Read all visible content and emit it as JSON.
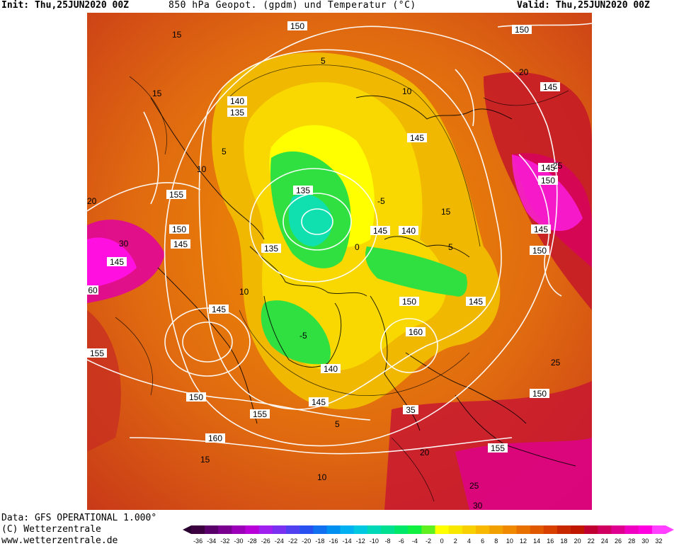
{
  "header": {
    "init": "Init: Thu,25JUN2020 00Z",
    "title": "850 hPa Geopot. (gpdm) und Temperatur (°C)",
    "valid": "Valid: Thu,25JUN2020 00Z"
  },
  "footer": {
    "data_line": "Data: GFS OPERATIONAL 1.000°",
    "copyright": "(C) Wetterzentrale",
    "url": "www.wetterzentrale.de"
  },
  "colorbar": {
    "labels": [
      "-36",
      "-34",
      "-32",
      "-30",
      "-28",
      "-26",
      "-24",
      "-22",
      "-20",
      "-18",
      "-16",
      "-14",
      "-12",
      "-10",
      "-8",
      "-6",
      "-4",
      "-2",
      "0",
      "2",
      "4",
      "6",
      "8",
      "10",
      "12",
      "14",
      "16",
      "18",
      "20",
      "22",
      "24",
      "26",
      "28",
      "30",
      "32"
    ],
    "colors": [
      "#3a0040",
      "#5a006a",
      "#7a0090",
      "#9c00b8",
      "#b800d8",
      "#a020f0",
      "#7a30f0",
      "#5040f0",
      "#2850f0",
      "#1070f0",
      "#0090f0",
      "#00b0f0",
      "#00c8e0",
      "#00d8b8",
      "#00e090",
      "#00e868",
      "#10f040",
      "#60f020",
      "#ffff00",
      "#f8e800",
      "#f8d000",
      "#f8b800",
      "#f0a000",
      "#f08800",
      "#e87000",
      "#e05800",
      "#d84000",
      "#c82800",
      "#c01800",
      "#c00030",
      "#d00060",
      "#e00090",
      "#f000c0",
      "#ff00e0",
      "#ff40ff"
    ]
  },
  "map": {
    "geopotential_labels": [
      "150",
      "150",
      "140",
      "135",
      "145",
      "145",
      "150",
      "145",
      "155",
      "150",
      "145",
      "135",
      "145",
      "140",
      "145",
      "150",
      "145",
      "135",
      "150",
      "160",
      "145",
      "145",
      "140",
      "150",
      "155",
      "145",
      "155",
      "160",
      "155",
      "150",
      "35",
      "60"
    ],
    "temperature_labels": [
      "15",
      "15",
      "20",
      "10",
      "5",
      "10",
      "5",
      "-5",
      "0",
      "5",
      "15",
      "10",
      "20",
      "25",
      "25",
      "10",
      "20",
      "25",
      "30",
      "15",
      "-5",
      "5",
      "30"
    ]
  }
}
